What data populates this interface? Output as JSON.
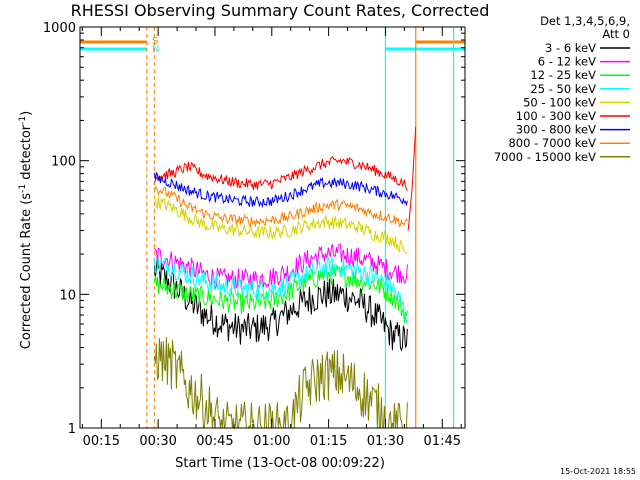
{
  "chart_data": {
    "type": "line",
    "title": "RHESSI Observing Summary Count Rates, Corrected",
    "xlabel": "Start Time (13-Oct-08 00:09:22)",
    "ylabel": "Corrected Count Rate (s",
    "ylabel_sup": "-1",
    "ylabel_mid": " detector",
    "ylabel_end": ")",
    "y_scale": "log",
    "ylim": [
      1,
      1000
    ],
    "xlim_minutes": [
      9.37,
      111.0
    ],
    "x_ticks": [
      {
        "label": "00:15",
        "minutes": 15
      },
      {
        "label": "00:30",
        "minutes": 30
      },
      {
        "label": "00:45",
        "minutes": 45
      },
      {
        "label": "01:00",
        "minutes": 60
      },
      {
        "label": "01:15",
        "minutes": 75
      },
      {
        "label": "01:30",
        "minutes": 90
      },
      {
        "label": "01:45",
        "minutes": 105
      }
    ],
    "y_ticks": [
      {
        "label": "1",
        "value": 1
      },
      {
        "label": "10",
        "value": 10
      },
      {
        "label": "100",
        "value": 100
      },
      {
        "label": "1000",
        "value": 1000
      }
    ],
    "legend_header_1": "Det 1,3,4,5,6,9,",
    "legend_header_2": "Att 0",
    "legend_position": "right",
    "series": [
      {
        "name": "3 - 6 keV",
        "color": "#000000",
        "shape": [
          15,
          12,
          9,
          7,
          6,
          5.5,
          5.5,
          6,
          7.5,
          9,
          10,
          10,
          9,
          7,
          5,
          4.5
        ],
        "noise": 0.12,
        "base": 1.0
      },
      {
        "name": "6 - 12 keV",
        "color": "#ff00ff",
        "shape": [
          20,
          18,
          16,
          14,
          13,
          13,
          13,
          13.5,
          15,
          18,
          20,
          20,
          19,
          17,
          15,
          14
        ],
        "noise": 0.08,
        "base": 1.0
      },
      {
        "name": "12 - 25 keV",
        "color": "#00ff00",
        "shape": [
          12,
          11,
          10,
          9.5,
          9,
          8.5,
          8.5,
          9,
          10.5,
          12.5,
          14,
          14,
          13,
          12,
          10,
          6.5
        ],
        "noise": 0.08,
        "base": 1.0
      },
      {
        "name": "25 - 50 keV",
        "color": "#00ffff",
        "shape": [
          17,
          16,
          14,
          12.5,
          11.5,
          11,
          11,
          11,
          12,
          14,
          16,
          16,
          15,
          13.5,
          11.5,
          6.5
        ],
        "noise": 0.08,
        "base": 1.0
      },
      {
        "name": "50 - 100 keV",
        "color": "#d4d400",
        "shape": [
          50,
          45,
          38,
          33,
          31,
          30,
          29,
          29,
          30,
          33,
          35,
          34,
          32,
          28,
          26,
          20
        ],
        "noise": 0.05,
        "base": 1.0
      },
      {
        "name": "100 - 300 keV",
        "color": "#ff0000",
        "shape": [
          75,
          80,
          90,
          78,
          72,
          68,
          66,
          68,
          75,
          85,
          95,
          100,
          95,
          85,
          75,
          65
        ],
        "noise": 0.04,
        "base": 1.0
      },
      {
        "name": "300 - 800 keV",
        "color": "#0000ff",
        "shape": [
          75,
          68,
          60,
          55,
          52,
          50,
          49,
          50,
          55,
          62,
          68,
          68,
          65,
          60,
          55,
          50
        ],
        "noise": 0.04,
        "base": 1.0
      },
      {
        "name": "800 - 7000 keV",
        "color": "#ff8000",
        "shape": [
          63,
          55,
          45,
          40,
          37,
          36,
          35,
          36,
          38,
          42,
          46,
          47,
          44,
          40,
          37,
          33
        ],
        "noise": 0.04,
        "base": 1.0
      },
      {
        "name": "7000 - 15000 keV",
        "color": "#808000",
        "shape": [
          3.5,
          3,
          2,
          1.5,
          1,
          1,
          1,
          1,
          1,
          2,
          2.5,
          2.5,
          2,
          1.5,
          1,
          1
        ],
        "noise": 0.2,
        "base": 1.0
      }
    ],
    "flags": [
      {
        "label": "S",
        "color": "#ff8000"
      },
      {
        "label": "N",
        "color": "#00ffff"
      }
    ],
    "stamp": "15-Oct-2021 18:55"
  }
}
